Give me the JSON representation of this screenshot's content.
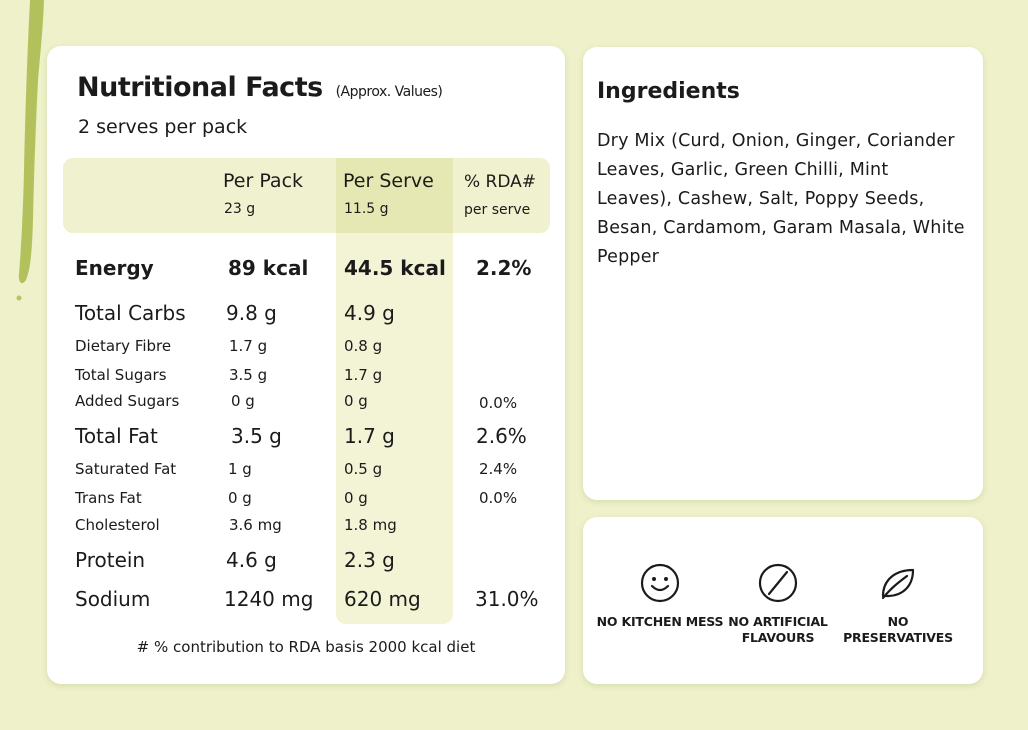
{
  "nutrition": {
    "title": "Nutritional Facts",
    "title_note": "(Approx. Values)",
    "serves": "2 serves per pack",
    "columns": [
      {
        "label": "Per Pack",
        "sub": "23 g"
      },
      {
        "label": "Per Serve",
        "sub": "11.5 g"
      },
      {
        "label": "% RDA#",
        "sub": "per serve"
      }
    ],
    "rows": [
      {
        "name": "Energy",
        "pack": "89 kcal",
        "serve": "44.5 kcal",
        "rda": "2.2%"
      },
      {
        "name": "Total Carbs",
        "pack": "9.8 g",
        "serve": "4.9 g",
        "rda": ""
      },
      {
        "name": "Dietary Fibre",
        "pack": "1.7 g",
        "serve": "0.8 g",
        "rda": ""
      },
      {
        "name": "Total Sugars",
        "pack": "3.5 g",
        "serve": "1.7 g",
        "rda": ""
      },
      {
        "name": "Added Sugars",
        "pack": "0 g",
        "serve": "0 g",
        "rda": "0.0%"
      },
      {
        "name": "Total Fat",
        "pack": "3.5 g",
        "serve": "1.7 g",
        "rda": "2.6%"
      },
      {
        "name": "Saturated Fat",
        "pack": "1 g",
        "serve": "0.5 g",
        "rda": "2.4%"
      },
      {
        "name": "Trans Fat",
        "pack": "0 g",
        "serve": "0 g",
        "rda": "0.0%"
      },
      {
        "name": "Cholesterol",
        "pack": "3.6 mg",
        "serve": "1.8 mg",
        "rda": ""
      },
      {
        "name": "Protein",
        "pack": "4.6 g",
        "serve": "2.3 g",
        "rda": ""
      },
      {
        "name": "Sodium",
        "pack": "1240 mg",
        "serve": "620 mg",
        "rda": "31.0%"
      }
    ],
    "footnote": "# % contribution to RDA basis 2000 kcal diet"
  },
  "ingredients": {
    "title": "Ingredients",
    "text": "Dry Mix (Curd, Onion, Ginger, Coriander Leaves, Garlic, Green Chilli, Mint Leaves), Cashew, Salt, Poppy Seeds, Besan, Cardamom, Garam Masala, White Pepper"
  },
  "badges": [
    {
      "icon": "smiley-icon",
      "label": "NO KITCHEN MESS"
    },
    {
      "icon": "prohibited-icon",
      "label": "NO ARTIFICIAL FLAVOURS"
    },
    {
      "icon": "leaf-icon",
      "label": "NO PRESERVATIVES"
    }
  ],
  "colors": {
    "background": "#eef1c9",
    "header_band": "#f0f1cf",
    "serve_column": "#f3f4d6",
    "drip": "#a8b94a"
  }
}
